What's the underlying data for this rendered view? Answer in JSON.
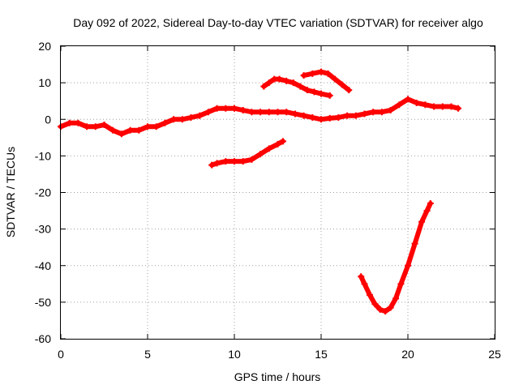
{
  "chart_data": {
    "type": "line",
    "title": "Day 092 of 2022, Sidereal Day-to-day VTEC variation (SDTVAR) for receiver algo",
    "xlabel": "GPS time / hours",
    "ylabel": "SDTVAR / TECUs",
    "xlim": [
      0,
      25
    ],
    "ylim": [
      -60,
      20
    ],
    "xticks": [
      0,
      5,
      10,
      15,
      20,
      25
    ],
    "yticks": [
      -60,
      -50,
      -40,
      -30,
      -20,
      -10,
      0,
      10,
      20
    ],
    "xtick_labels": [
      "0",
      "5",
      "10",
      "15",
      "20",
      "25"
    ],
    "ytick_labels": [
      "-60",
      "-50",
      "-40",
      "-30",
      "-20",
      "-10",
      "0",
      "10",
      "20"
    ],
    "grid": true,
    "color": "#ff0000",
    "series": [
      {
        "name": "main trace",
        "x": [
          0,
          0.5,
          1,
          1.5,
          2,
          2.5,
          3,
          3.5,
          4,
          4.5,
          5,
          5.5,
          6,
          6.5,
          7,
          7.5,
          8,
          8.5,
          9,
          9.5,
          10,
          10.5,
          11,
          11.5,
          12,
          12.5,
          13,
          13.5,
          14,
          14.5,
          15,
          15.5,
          16,
          16.5,
          17,
          17.5,
          18,
          18.5,
          19,
          19.5,
          20,
          20.5,
          21,
          21.5,
          22,
          22.5,
          22.9
        ],
        "y": [
          -2,
          -1,
          -1,
          -2,
          -2,
          -1.5,
          -3,
          -4,
          -3,
          -3,
          -2,
          -2,
          -1,
          0,
          0,
          0.5,
          1,
          2,
          3,
          3,
          3,
          2.5,
          2,
          2,
          2,
          2,
          2,
          1.5,
          1,
          0.5,
          0,
          0.3,
          0.5,
          1,
          1,
          1.5,
          2,
          2,
          2.5,
          4,
          5.5,
          4.5,
          4,
          3.5,
          3.5,
          3.5,
          3
        ]
      },
      {
        "name": "upper arc 1",
        "x": [
          11.7,
          12,
          12.3,
          12.6,
          13,
          13.4,
          13.8,
          14.2,
          14.6,
          15,
          15.5
        ],
        "y": [
          9,
          10,
          11,
          11,
          10.5,
          10,
          9,
          8,
          7.5,
          7,
          6.5
        ]
      },
      {
        "name": "upper arc 2",
        "x": [
          14,
          14.5,
          15,
          15.4,
          15.8,
          16.2,
          16.6
        ],
        "y": [
          12,
          12.5,
          13,
          12.5,
          11,
          9.5,
          8
        ]
      },
      {
        "name": "lower branch",
        "x": [
          8.7,
          9,
          9.5,
          10,
          10.5,
          11,
          11.5,
          12,
          12.5,
          12.8
        ],
        "y": [
          -12.5,
          -12,
          -11.5,
          -11.5,
          -11.5,
          -11,
          -9.5,
          -8,
          -6.8,
          -6
        ]
      },
      {
        "name": "deep dip",
        "x": [
          17.3,
          17.5,
          17.8,
          18.1,
          18.4,
          18.7,
          19,
          19.3,
          19.6,
          20,
          20.4,
          20.8,
          21.1,
          21.3
        ],
        "y": [
          -43,
          -45,
          -48,
          -50.5,
          -52,
          -52.5,
          -51.5,
          -49,
          -45,
          -40,
          -34,
          -28,
          -25,
          -23
        ]
      }
    ]
  }
}
